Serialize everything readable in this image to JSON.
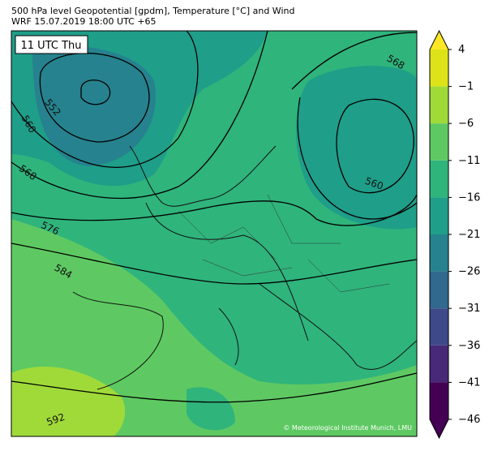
{
  "header": {
    "title": [
      "500 hPa level Geopotential [gpdm], Temperature [°C] and Wind",
      "WRF 15.07.2019 18:00 UTC +65"
    ]
  },
  "map": {
    "time_label": "11 UTC Thu",
    "contour_labels": [
      "552",
      "560",
      "568",
      "576",
      "584",
      "592",
      "560",
      "568"
    ],
    "credit": "© Meteorological Institute Munich, LMU"
  },
  "colorbar": {
    "ticks": [
      4,
      {
        "value": -1,
        "label": "−1"
      },
      {
        "value": -6,
        "label": "−6"
      },
      {
        "value": -11,
        "label": "−11"
      },
      {
        "value": -16,
        "label": "−16"
      },
      {
        "value": -21,
        "label": "−21"
      },
      {
        "value": -26,
        "label": "−26"
      },
      {
        "value": -31,
        "label": "−31"
      },
      {
        "value": -36,
        "label": "−36"
      },
      {
        "value": -41,
        "label": "−41"
      },
      {
        "value": -46,
        "label": "−46"
      }
    ],
    "colors": [
      "#dde318",
      "#a0da39",
      "#5ec962",
      "#2fb47c",
      "#1f9e89",
      "#26828e",
      "#31688e",
      "#3e4989",
      "#482878",
      "#440154"
    ],
    "extend_max_color": "#fde725",
    "extend_min_color": "#440154"
  }
}
